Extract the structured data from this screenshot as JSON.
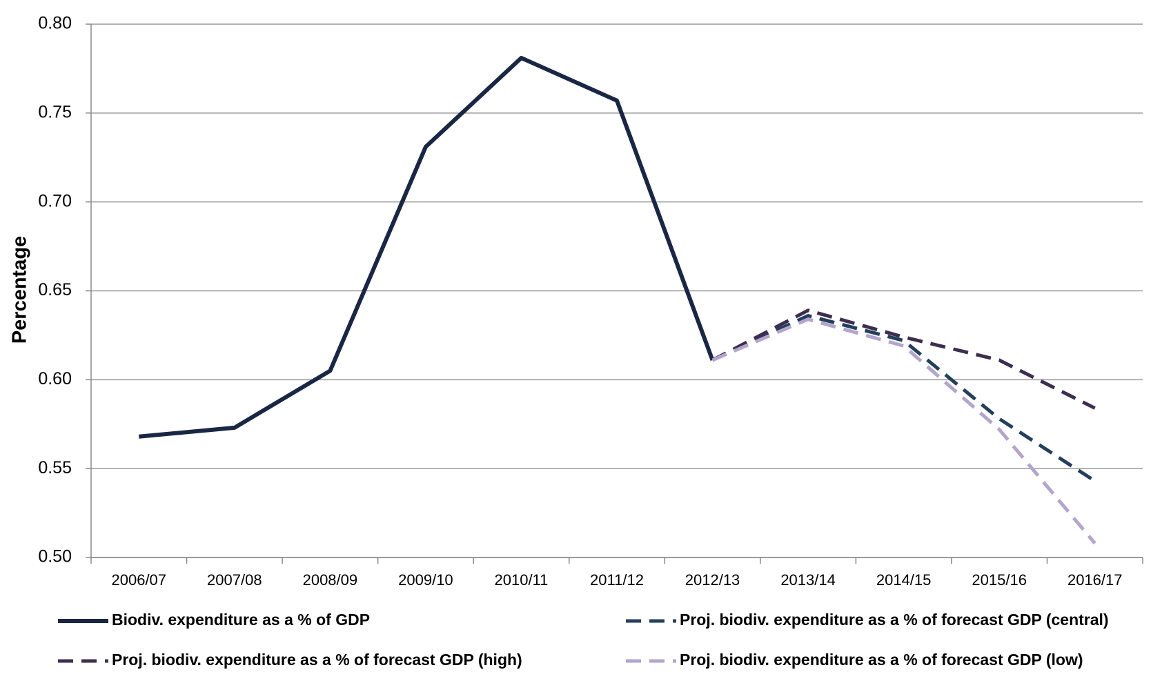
{
  "chart_data": {
    "type": "line",
    "y_label": "Percentage",
    "categories": [
      "2006/07",
      "2007/08",
      "2008/09",
      "2009/10",
      "2010/11",
      "2011/12",
      "2012/13",
      "2013/14",
      "2014/15",
      "2015/16",
      "2016/17"
    ],
    "series": [
      {
        "name": "Biodiv. expenditure as a % of GDP",
        "color": "#1a2744",
        "dash": false,
        "values": [
          0.568,
          0.573,
          0.605,
          0.731,
          0.781,
          0.757,
          0.611,
          null,
          null,
          null,
          null
        ]
      },
      {
        "name": "Proj. biodiv. expenditure as a % of forecast GDP (central)",
        "color": "#243f5c",
        "dash": true,
        "values": [
          null,
          null,
          null,
          null,
          null,
          null,
          0.611,
          0.636,
          0.622,
          0.578,
          0.543
        ]
      },
      {
        "name": "Proj. biodiv. expenditure as a % of forecast GDP (high)",
        "color": "#3d2e4f",
        "dash": true,
        "values": [
          null,
          null,
          null,
          null,
          null,
          null,
          0.611,
          0.639,
          0.624,
          0.611,
          0.584
        ]
      },
      {
        "name": "Proj. biodiv. expenditure as a % of forecast GDP (low)",
        "color": "#b3a5cc",
        "dash": true,
        "values": [
          null,
          null,
          null,
          null,
          null,
          null,
          0.611,
          0.634,
          0.619,
          0.572,
          0.508
        ]
      }
    ],
    "ylim": [
      0.5,
      0.8
    ],
    "yticks": [
      {
        "value": 0.5,
        "label": "0.50"
      },
      0.55,
      {
        "value": 0.6,
        "label": "0.60"
      },
      0.65,
      {
        "value": 0.7,
        "label": "0.70"
      },
      0.75,
      {
        "value": 0.8,
        "label": "0.80"
      }
    ],
    "grid": true
  }
}
